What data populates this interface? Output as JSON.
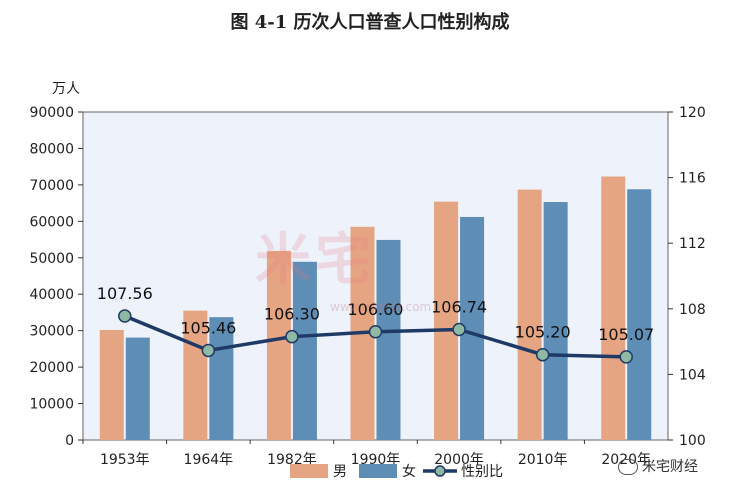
{
  "figure_title": "图 4-1    历次人口普查人口性别构成",
  "watermark": {
    "text": "米宅",
    "url": "www.mizhai.com"
  },
  "brand": {
    "text": "米宅财经",
    "icon": "wechat-icon"
  },
  "colors": {
    "male": "#E6A582",
    "female": "#5E8DB5",
    "ratio_line": "#1F3A66",
    "ratio_marker": "#8FB9A4",
    "plot_bg": "#EEF2FB"
  },
  "chart_data": {
    "type": "bar",
    "categories": [
      "1953年",
      "1964年",
      "1982年",
      "1990年",
      "2000年",
      "2010年",
      "2020年"
    ],
    "y_unit_label": "万人",
    "ylim": [
      0,
      90000
    ],
    "y_ticks": [
      0,
      10000,
      20000,
      30000,
      40000,
      50000,
      60000,
      70000,
      80000,
      90000
    ],
    "y2lim": [
      100,
      120
    ],
    "y2_ticks": [
      100,
      104,
      108,
      112,
      116,
      120
    ],
    "series": [
      {
        "name": "男",
        "type": "bar",
        "values": [
          30200,
          35500,
          51900,
          58500,
          65400,
          68700,
          72300
        ]
      },
      {
        "name": "女",
        "type": "bar",
        "values": [
          28100,
          33700,
          48900,
          54900,
          61200,
          65300,
          68800
        ]
      },
      {
        "name": "性别比",
        "type": "line",
        "axis": "right",
        "values": [
          107.56,
          105.46,
          106.3,
          106.6,
          106.74,
          105.2,
          105.07
        ],
        "labels": [
          "107.56",
          "105.46",
          "106.30",
          "106.60",
          "106.74",
          "105.20",
          "105.07"
        ]
      }
    ],
    "legend": "bottom-center",
    "grid": false
  }
}
